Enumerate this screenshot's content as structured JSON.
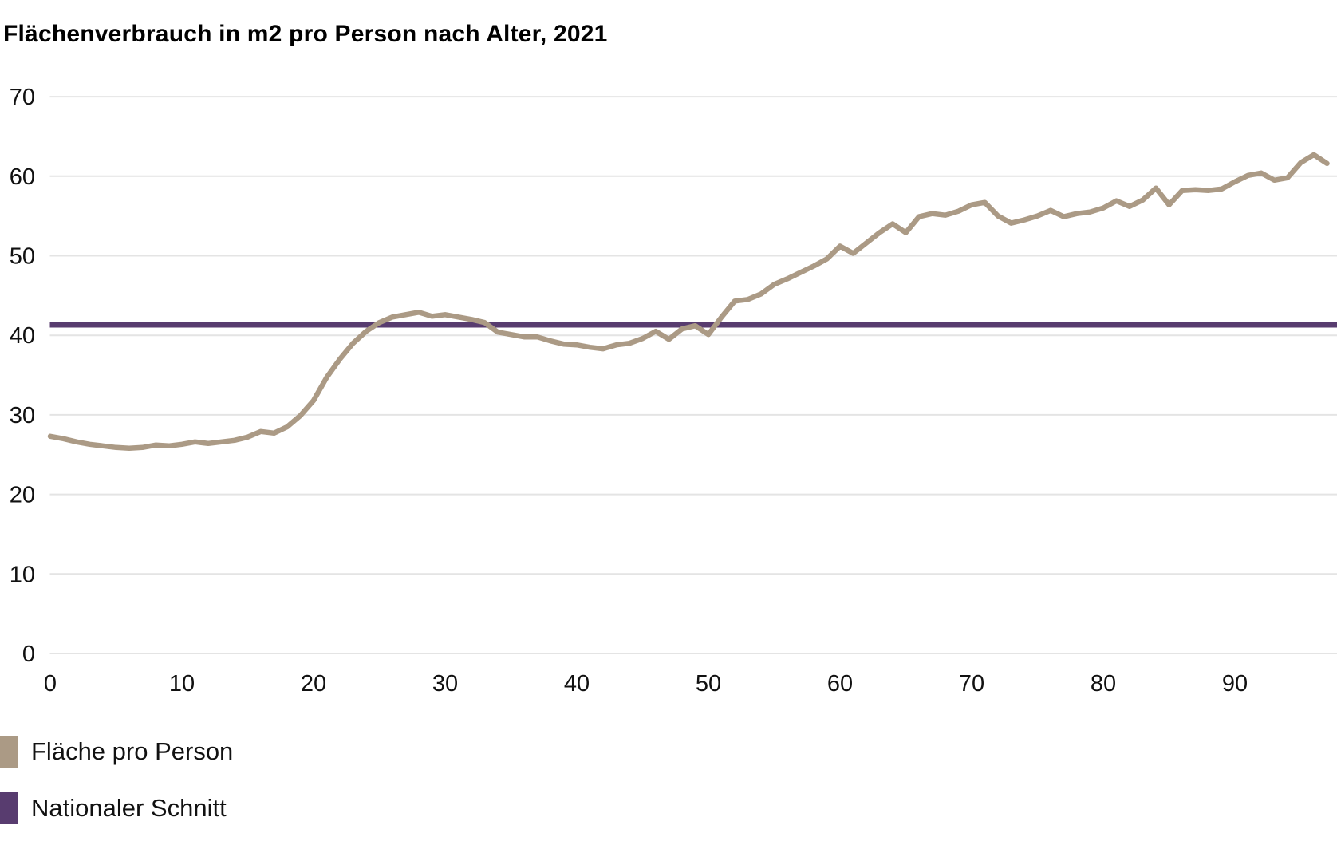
{
  "title": "Flächenverbrauch in m2 pro Person nach Alter, 2021",
  "chart_data": {
    "type": "line",
    "title": "Flächenverbrauch in m2 pro Person nach Alter, 2021",
    "xlabel": "",
    "ylabel": "",
    "xlim": [
      0,
      97
    ],
    "ylim": [
      0,
      70
    ],
    "x_ticks": [
      0,
      10,
      20,
      30,
      40,
      50,
      60,
      70,
      80,
      90
    ],
    "y_ticks": [
      0,
      10,
      20,
      30,
      40,
      50,
      60,
      70
    ],
    "grid": "horizontal",
    "legend_position": "bottom-left",
    "colors": {
      "grid": "#e4e4e4",
      "area_line": "#ab9a85",
      "average_line": "#583c6f",
      "text": "#111111"
    },
    "x": [
      0,
      1,
      2,
      3,
      4,
      5,
      6,
      7,
      8,
      9,
      10,
      11,
      12,
      13,
      14,
      15,
      16,
      17,
      18,
      19,
      20,
      21,
      22,
      23,
      24,
      25,
      26,
      27,
      28,
      29,
      30,
      31,
      32,
      33,
      34,
      35,
      36,
      37,
      38,
      39,
      40,
      41,
      42,
      43,
      44,
      45,
      46,
      47,
      48,
      49,
      50,
      51,
      52,
      53,
      54,
      55,
      56,
      57,
      58,
      59,
      60,
      61,
      62,
      63,
      64,
      65,
      66,
      67,
      68,
      69,
      70,
      71,
      72,
      73,
      74,
      75,
      76,
      77,
      78,
      79,
      80,
      81,
      82,
      83,
      84,
      85,
      86,
      87,
      88,
      89,
      90,
      91,
      92,
      93,
      94,
      95,
      96,
      97
    ],
    "series": [
      {
        "name": "Fläche pro Person",
        "color": "#ab9a85",
        "values": [
          27.3,
          27.0,
          26.6,
          26.3,
          26.1,
          25.9,
          25.8,
          25.9,
          26.2,
          26.1,
          26.3,
          26.6,
          26.4,
          26.6,
          26.8,
          27.2,
          27.9,
          27.7,
          28.5,
          29.9,
          31.8,
          34.7,
          37.0,
          39.0,
          40.5,
          41.6,
          42.3,
          42.6,
          42.9,
          42.4,
          42.6,
          42.3,
          42.0,
          41.6,
          40.4,
          40.1,
          39.8,
          39.8,
          39.3,
          38.9,
          38.8,
          38.5,
          38.3,
          38.8,
          39.0,
          39.6,
          40.5,
          39.5,
          40.8,
          41.2,
          40.1,
          42.3,
          44.3,
          44.5,
          45.2,
          46.4,
          47.1,
          47.9,
          48.7,
          49.6,
          51.2,
          50.3,
          51.6,
          52.9,
          54.0,
          52.9,
          54.9,
          55.3,
          55.1,
          55.6,
          56.4,
          56.7,
          55.0,
          54.1,
          54.5,
          55.0,
          55.7,
          54.9,
          55.3,
          55.5,
          56.0,
          56.9,
          56.2,
          57.0,
          58.5,
          56.4,
          58.2,
          58.3,
          58.2,
          58.4,
          59.3,
          60.1,
          60.4,
          59.5,
          59.8,
          61.7,
          62.7,
          61.6
        ]
      },
      {
        "name": "Nationaler Schnitt",
        "color": "#583c6f",
        "constant_value": 41.3
      }
    ]
  },
  "legend": {
    "items": [
      {
        "label": "Fläche pro Person",
        "color": "#ab9a85"
      },
      {
        "label": "Nationaler Schnitt",
        "color": "#583c6f"
      }
    ]
  }
}
